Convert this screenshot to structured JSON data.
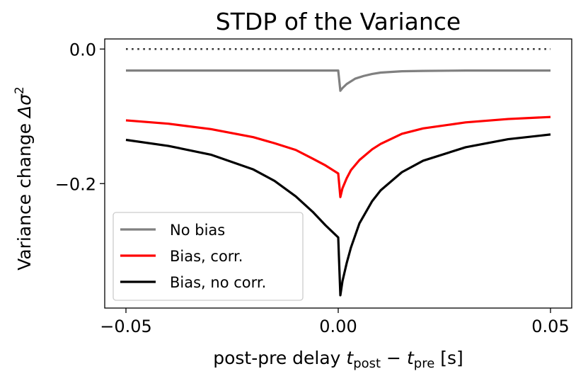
{
  "chart_data": {
    "type": "line",
    "title": "STDP of the Variance",
    "xlabel": {
      "prefix": "post-pre delay ",
      "var1": "t",
      "sub1": "post",
      "minus": " − ",
      "var2": "t",
      "sub2": "pre",
      "suffix": " [s]"
    },
    "ylabel": {
      "prefix": "Variance change ",
      "symbol": "Δσ",
      "sup": "2"
    },
    "xlim": [
      -0.055,
      0.055
    ],
    "ylim": [
      -0.385,
      0.015
    ],
    "xticks": [
      {
        "value": -0.05,
        "label": "−0.05"
      },
      {
        "value": 0.0,
        "label": "0.00"
      },
      {
        "value": 0.05,
        "label": "0.05"
      }
    ],
    "yticks": [
      {
        "value": 0.0,
        "label": "0.0"
      },
      {
        "value": -0.2,
        "label": "−0.2"
      }
    ],
    "legend_position": "lower-left",
    "reference_line": {
      "y": 0.0,
      "style": "dotted",
      "color": "#333333"
    },
    "series": [
      {
        "name": "No bias",
        "color": "#808080",
        "points": [
          [
            -0.05,
            -0.032
          ],
          [
            -0.04,
            -0.032
          ],
          [
            -0.03,
            -0.032
          ],
          [
            -0.02,
            -0.032
          ],
          [
            -0.01,
            -0.032
          ],
          [
            -0.002,
            -0.032
          ],
          [
            0.0,
            -0.032
          ],
          [
            0.0005,
            -0.062
          ],
          [
            0.001,
            -0.058
          ],
          [
            0.002,
            -0.052
          ],
          [
            0.004,
            -0.044
          ],
          [
            0.006,
            -0.04
          ],
          [
            0.008,
            -0.037
          ],
          [
            0.01,
            -0.035
          ],
          [
            0.015,
            -0.033
          ],
          [
            0.02,
            -0.0325
          ],
          [
            0.03,
            -0.032
          ],
          [
            0.04,
            -0.032
          ],
          [
            0.05,
            -0.032
          ]
        ]
      },
      {
        "name": "Bias, corr.",
        "color": "#ff0000",
        "points": [
          [
            -0.05,
            -0.106
          ],
          [
            -0.04,
            -0.111
          ],
          [
            -0.03,
            -0.119
          ],
          [
            -0.02,
            -0.131
          ],
          [
            -0.015,
            -0.14
          ],
          [
            -0.01,
            -0.15
          ],
          [
            -0.006,
            -0.163
          ],
          [
            -0.003,
            -0.173
          ],
          [
            -0.001,
            -0.181
          ],
          [
            0.0,
            -0.185
          ],
          [
            0.0005,
            -0.22
          ],
          [
            0.001,
            -0.207
          ],
          [
            0.002,
            -0.192
          ],
          [
            0.003,
            -0.18
          ],
          [
            0.005,
            -0.165
          ],
          [
            0.008,
            -0.149
          ],
          [
            0.01,
            -0.141
          ],
          [
            0.015,
            -0.126
          ],
          [
            0.02,
            -0.118
          ],
          [
            0.03,
            -0.109
          ],
          [
            0.04,
            -0.104
          ],
          [
            0.05,
            -0.101
          ]
        ]
      },
      {
        "name": "Bias, no corr.",
        "color": "#000000",
        "points": [
          [
            -0.05,
            -0.135
          ],
          [
            -0.04,
            -0.144
          ],
          [
            -0.03,
            -0.157
          ],
          [
            -0.02,
            -0.179
          ],
          [
            -0.015,
            -0.196
          ],
          [
            -0.01,
            -0.219
          ],
          [
            -0.006,
            -0.242
          ],
          [
            -0.003,
            -0.262
          ],
          [
            -0.001,
            -0.274
          ],
          [
            0.0,
            -0.28
          ],
          [
            0.0005,
            -0.366
          ],
          [
            0.001,
            -0.345
          ],
          [
            0.002,
            -0.318
          ],
          [
            0.003,
            -0.295
          ],
          [
            0.005,
            -0.259
          ],
          [
            0.008,
            -0.226
          ],
          [
            0.01,
            -0.21
          ],
          [
            0.015,
            -0.183
          ],
          [
            0.02,
            -0.166
          ],
          [
            0.03,
            -0.146
          ],
          [
            0.04,
            -0.134
          ],
          [
            0.05,
            -0.127
          ]
        ]
      }
    ]
  }
}
